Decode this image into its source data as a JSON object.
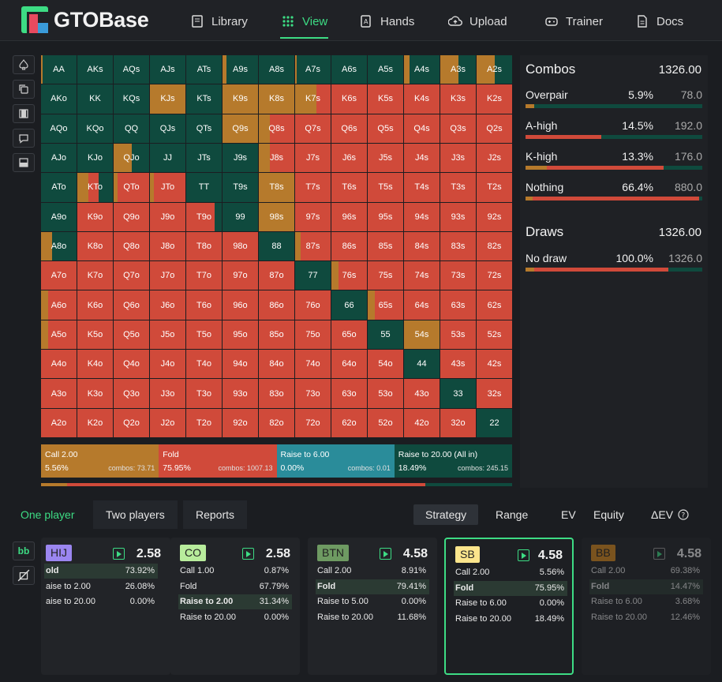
{
  "app": {
    "name": "GTOBase"
  },
  "nav": [
    {
      "label": "Library",
      "icon": "book-icon"
    },
    {
      "label": "View",
      "icon": "grid-dots-icon",
      "active": true
    },
    {
      "label": "Hands",
      "icon": "cards-icon"
    },
    {
      "label": "Upload",
      "icon": "cloud-upload-icon"
    },
    {
      "label": "Trainer",
      "icon": "gamepad-icon"
    },
    {
      "label": "Docs",
      "icon": "document-icon"
    }
  ],
  "colors": {
    "call": "#b67a2c",
    "fold": "#d04a3a",
    "raise_small": "#2a8c9a",
    "raise_allin": "#0f4a3e",
    "accent": "#3ddc84"
  },
  "matrix": {
    "labels": [
      [
        "AA",
        "AKs",
        "AQs",
        "AJs",
        "ATs",
        "A9s",
        "A8s",
        "A7s",
        "A6s",
        "A5s",
        "A4s",
        "A3s",
        "A2s"
      ],
      [
        "AKo",
        "KK",
        "KQs",
        "KJs",
        "KTs",
        "K9s",
        "K8s",
        "K7s",
        "K6s",
        "K5s",
        "K4s",
        "K3s",
        "K2s"
      ],
      [
        "AQo",
        "KQo",
        "QQ",
        "QJs",
        "QTs",
        "Q9s",
        "Q8s",
        "Q7s",
        "Q6s",
        "Q5s",
        "Q4s",
        "Q3s",
        "Q2s"
      ],
      [
        "AJo",
        "KJo",
        "QJo",
        "JJ",
        "JTs",
        "J9s",
        "J8s",
        "J7s",
        "J6s",
        "J5s",
        "J4s",
        "J3s",
        "J2s"
      ],
      [
        "ATo",
        "KTo",
        "QTo",
        "JTo",
        "TT",
        "T9s",
        "T8s",
        "T7s",
        "T6s",
        "T5s",
        "T4s",
        "T3s",
        "T2s"
      ],
      [
        "A9o",
        "K9o",
        "Q9o",
        "J9o",
        "T9o",
        "99",
        "98s",
        "97s",
        "96s",
        "95s",
        "94s",
        "93s",
        "92s"
      ],
      [
        "A8o",
        "K8o",
        "Q8o",
        "J8o",
        "T8o",
        "98o",
        "88",
        "87s",
        "86s",
        "85s",
        "84s",
        "83s",
        "82s"
      ],
      [
        "A7o",
        "K7o",
        "Q7o",
        "J7o",
        "T7o",
        "97o",
        "87o",
        "77",
        "76s",
        "75s",
        "74s",
        "73s",
        "72s"
      ],
      [
        "A6o",
        "K6o",
        "Q6o",
        "J6o",
        "T6o",
        "96o",
        "86o",
        "76o",
        "66",
        "65s",
        "64s",
        "63s",
        "62s"
      ],
      [
        "A5o",
        "K5o",
        "Q5o",
        "J5o",
        "T5o",
        "95o",
        "85o",
        "75o",
        "65o",
        "55",
        "54s",
        "53s",
        "52s"
      ],
      [
        "A4o",
        "K4o",
        "Q4o",
        "J4o",
        "T4o",
        "94o",
        "84o",
        "74o",
        "64o",
        "54o",
        "44",
        "43s",
        "42s"
      ],
      [
        "A3o",
        "K3o",
        "Q3o",
        "J3o",
        "T3o",
        "93o",
        "83o",
        "73o",
        "63o",
        "53o",
        "43o",
        "33",
        "32s"
      ],
      [
        "A2o",
        "K2o",
        "Q2o",
        "J2o",
        "T2o",
        "92o",
        "82o",
        "72o",
        "62o",
        "52o",
        "42o",
        "32o",
        "22"
      ]
    ],
    "hands": {
      "AA": {
        "c": 0.05,
        "f": 0,
        "r": 0.95
      },
      "AKs": {
        "c": 0,
        "f": 0,
        "r": 1
      },
      "AQs": {
        "c": 0,
        "f": 0,
        "r": 1
      },
      "AJs": {
        "c": 0,
        "f": 0,
        "r": 1
      },
      "ATs": {
        "c": 0,
        "f": 0,
        "r": 1
      },
      "A9s": {
        "c": 0.1,
        "f": 0,
        "r": 0.9
      },
      "A8s": {
        "c": 0,
        "f": 0,
        "r": 1
      },
      "A7s": {
        "c": 0.05,
        "f": 0,
        "r": 0.95
      },
      "A6s": {
        "c": 0,
        "f": 0,
        "r": 1
      },
      "A5s": {
        "c": 0,
        "f": 0,
        "r": 1
      },
      "A4s": {
        "c": 0.15,
        "f": 0,
        "r": 0.85
      },
      "A3s": {
        "c": 0.5,
        "f": 0,
        "r": 0.5
      },
      "A2s": {
        "c": 0.5,
        "f": 0,
        "r": 0.5
      },
      "AKo": {
        "c": 0,
        "f": 0,
        "r": 1
      },
      "KK": {
        "c": 0,
        "f": 0,
        "r": 1
      },
      "KQs": {
        "c": 0,
        "f": 0,
        "r": 1
      },
      "KJs": {
        "c": 1,
        "f": 0,
        "r": 0
      },
      "KTs": {
        "c": 0,
        "f": 0,
        "r": 1
      },
      "K9s": {
        "c": 1,
        "f": 0,
        "r": 0
      },
      "K8s": {
        "c": 1,
        "f": 0,
        "r": 0
      },
      "K7s": {
        "c": 0.6,
        "f": 0.4,
        "r": 0
      },
      "AQo": {
        "c": 0,
        "f": 0,
        "r": 1
      },
      "KQo": {
        "c": 0,
        "f": 0,
        "r": 1
      },
      "QQ": {
        "c": 0,
        "f": 0,
        "r": 1
      },
      "QJs": {
        "c": 0,
        "f": 0,
        "r": 1
      },
      "QTs": {
        "c": 0,
        "f": 0,
        "r": 1
      },
      "Q9s": {
        "c": 1,
        "f": 0,
        "r": 0
      },
      "Q8s": {
        "c": 0.3,
        "f": 0.7,
        "r": 0
      },
      "AJo": {
        "c": 0,
        "f": 0,
        "r": 1
      },
      "KJo": {
        "c": 0,
        "f": 0,
        "r": 1
      },
      "QJo": {
        "c": 0.5,
        "f": 0,
        "r": 0.5
      },
      "JJ": {
        "c": 0,
        "f": 0,
        "r": 1
      },
      "JTs": {
        "c": 0,
        "f": 0,
        "r": 1
      },
      "J9s": {
        "c": 0,
        "f": 0,
        "r": 1
      },
      "J8s": {
        "c": 0.3,
        "f": 0.7,
        "r": 0
      },
      "ATo": {
        "c": 0,
        "f": 0,
        "r": 1
      },
      "KTo": {
        "c": 0.3,
        "f": 0.3,
        "r": 0.4
      },
      "QTo": {
        "c": 0.1,
        "f": 0.9,
        "r": 0
      },
      "JTo": {
        "c": 0.1,
        "f": 0.9,
        "r": 0
      },
      "TT": {
        "c": 0,
        "f": 0,
        "r": 1
      },
      "T9s": {
        "c": 0,
        "f": 0,
        "r": 1
      },
      "T8s": {
        "c": 1,
        "f": 0,
        "r": 0
      },
      "A9o": {
        "c": 0,
        "f": 0,
        "r": 1
      },
      "T9o": {
        "c": 0,
        "f": 0.8,
        "r": 0.2
      },
      "99": {
        "c": 0,
        "f": 0,
        "r": 1
      },
      "98s": {
        "c": 1,
        "f": 0,
        "r": 0
      },
      "A8o": {
        "c": 0.3,
        "f": 0,
        "r": 0.7
      },
      "88": {
        "c": 0,
        "f": 0,
        "r": 1
      },
      "87s": {
        "c": 0.15,
        "f": 0.85,
        "r": 0
      },
      "77": {
        "c": 0,
        "f": 0,
        "r": 1
      },
      "76s": {
        "c": 0.2,
        "f": 0.8,
        "r": 0
      },
      "A6o": {
        "c": 0.2,
        "f": 0.8,
        "r": 0
      },
      "66": {
        "c": 0,
        "f": 0,
        "r": 1
      },
      "65s": {
        "c": 0.2,
        "f": 0.8,
        "r": 0
      },
      "A5o": {
        "c": 0.2,
        "f": 0.8,
        "r": 0
      },
      "55": {
        "c": 0,
        "f": 0,
        "r": 1
      },
      "54s": {
        "c": 1,
        "f": 0,
        "r": 0
      },
      "44": {
        "c": 0,
        "f": 0,
        "r": 1
      },
      "33": {
        "c": 0,
        "f": 0,
        "r": 1
      },
      "22": {
        "c": 0,
        "f": 0,
        "r": 1
      }
    }
  },
  "legend": [
    {
      "label": "Call 2.00",
      "pct": "5.56%",
      "combos": "combos: 73.71",
      "color": "#b67a2c",
      "share": 0.25
    },
    {
      "label": "Fold",
      "pct": "75.95%",
      "combos": "combos: 1007.13",
      "color": "#d04a3a",
      "share": 0.25
    },
    {
      "label": "Raise to 6.00",
      "pct": "0.00%",
      "combos": "combos: 0.01",
      "color": "#2a8c9a",
      "share": 0.25
    },
    {
      "label": "Raise to 20.00 (All in)",
      "pct": "18.49%",
      "combos": "combos: 245.15",
      "color": "#0f4a3e",
      "share": 0.25
    }
  ],
  "legend_bar": [
    0.0556,
    0.7595,
    0.0,
    0.1849
  ],
  "combos_panel": {
    "title": "Combos",
    "total": "1326.00",
    "rows": [
      {
        "name": "Overpair",
        "pct": "5.9%",
        "count": "78.0",
        "bar": [
          0.05,
          0.0,
          0.95
        ]
      },
      {
        "name": "A-high",
        "pct": "14.5%",
        "count": "192.0",
        "bar": [
          0.0,
          0.43,
          0.57
        ]
      },
      {
        "name": "K-high",
        "pct": "13.3%",
        "count": "176.0",
        "bar": [
          0.12,
          0.66,
          0.22
        ]
      },
      {
        "name": "Nothing",
        "pct": "66.4%",
        "count": "880.0",
        "bar": [
          0.04,
          0.94,
          0.02
        ]
      }
    ]
  },
  "draws_panel": {
    "title": "Draws",
    "total": "1326.00",
    "rows": [
      {
        "name": "No draw",
        "pct": "100.0%",
        "count": "1326.0",
        "bar": [
          0.05,
          0.76,
          0.19
        ]
      }
    ]
  },
  "bottom_tabs": {
    "left": [
      "One player",
      "Two players",
      "Reports"
    ],
    "right": [
      "Strategy",
      "Range",
      "EV",
      "Equity",
      "ΔEV"
    ]
  },
  "side_buttons": {
    "bb": "bb"
  },
  "players": [
    {
      "pos": "HIJ",
      "color": "#9b86f0",
      "stack": "2.58",
      "actions": [
        {
          "name": "old",
          "pct": "73.92%",
          "hl": true
        },
        {
          "name": "aise to 2.00",
          "pct": "26.08%"
        },
        {
          "name": "aise to 20.00",
          "pct": "0.00%"
        }
      ]
    },
    {
      "pos": "CO",
      "color": "#b8ec9c",
      "stack": "2.58",
      "actions": [
        {
          "name": "Call 1.00",
          "pct": "0.87%"
        },
        {
          "name": "Fold",
          "pct": "67.79%"
        },
        {
          "name": "Raise to 2.00",
          "pct": "31.34%",
          "hl": true
        },
        {
          "name": "Raise to 20.00",
          "pct": "0.00%"
        }
      ]
    },
    {
      "pos": "BTN",
      "color": "#6e9a62",
      "stack": "4.58",
      "actions": [
        {
          "name": "Call 2.00",
          "pct": "8.91%"
        },
        {
          "name": "Fold",
          "pct": "79.41%",
          "hl": true
        },
        {
          "name": "Raise to 5.00",
          "pct": "0.00%"
        },
        {
          "name": "Raise to 20.00",
          "pct": "11.68%"
        }
      ]
    },
    {
      "pos": "SB",
      "color": "#fbe58c",
      "stack": "4.58",
      "actions": [
        {
          "name": "Call 2.00",
          "pct": "5.56%"
        },
        {
          "name": "Fold",
          "pct": "75.95%",
          "hl": true
        },
        {
          "name": "Raise to 6.00",
          "pct": "0.00%"
        },
        {
          "name": "Raise to 20.00",
          "pct": "18.49%"
        }
      ]
    },
    {
      "pos": "BB",
      "color": "#d98a1c",
      "stack": "4.58",
      "actions": [
        {
          "name": "Call 2.00",
          "pct": "69.38%"
        },
        {
          "name": "Fold",
          "pct": "14.47%",
          "hl": true
        },
        {
          "name": "Raise to 6.00",
          "pct": "3.68%"
        },
        {
          "name": "Raise to 20.00",
          "pct": "12.46%"
        }
      ]
    }
  ]
}
